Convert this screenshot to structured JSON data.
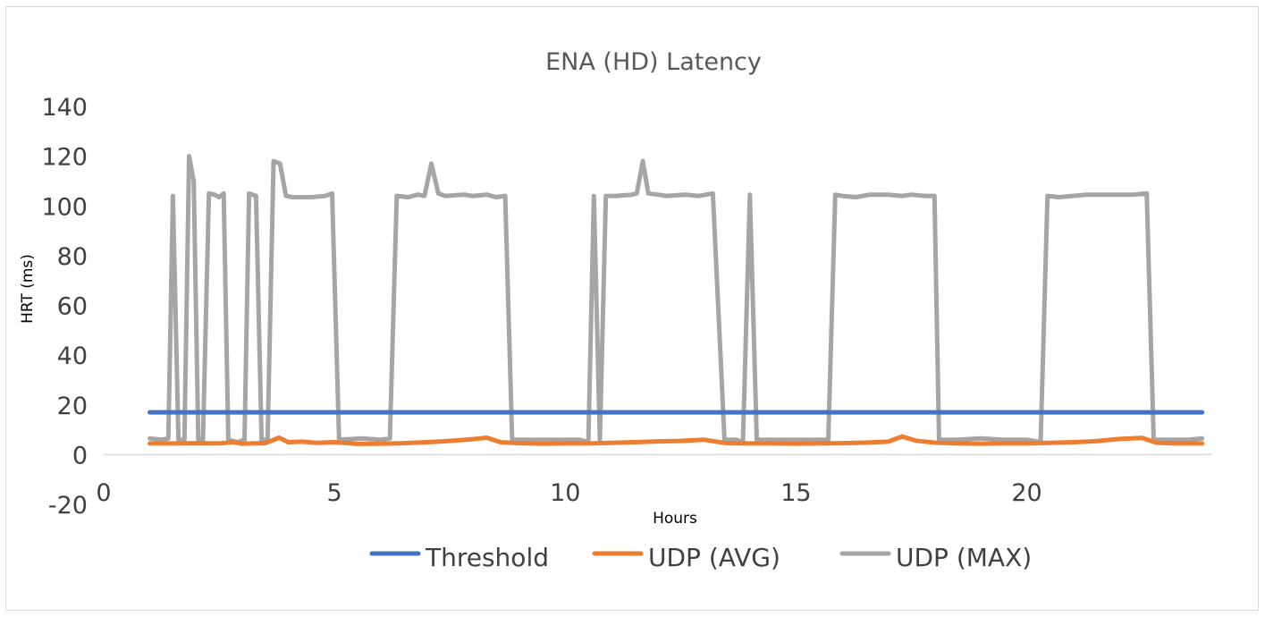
{
  "chart_data": {
    "type": "line",
    "title": "ENA (HD) Latency",
    "xlabel": "Hours",
    "ylabel": "HRT (ms)",
    "xlim": [
      0,
      24
    ],
    "ylim": [
      -20,
      140
    ],
    "x_ticks": [
      0,
      5,
      10,
      15,
      20
    ],
    "y_ticks": [
      -20,
      0,
      20,
      40,
      60,
      80,
      100,
      120,
      140
    ],
    "grid": false,
    "legend_position": "bottom",
    "series": [
      {
        "name": "Threshold",
        "color": "#4472C4",
        "points": [
          [
            1,
            17
          ],
          [
            23.8,
            17
          ]
        ]
      },
      {
        "name": "UDP (AVG)",
        "color": "#ED7D31",
        "points": [
          [
            1,
            4.5
          ],
          [
            1.5,
            4.5
          ],
          [
            2,
            4.6
          ],
          [
            2.5,
            4.5
          ],
          [
            2.8,
            5
          ],
          [
            3,
            4.4
          ],
          [
            3.5,
            4.6
          ],
          [
            3.8,
            6.8
          ],
          [
            4,
            5
          ],
          [
            4.3,
            5.2
          ],
          [
            4.6,
            4.7
          ],
          [
            5,
            5
          ],
          [
            5.5,
            4.3
          ],
          [
            6,
            4.4
          ],
          [
            6.5,
            4.6
          ],
          [
            7,
            5
          ],
          [
            7.5,
            5.5
          ],
          [
            8,
            6.2
          ],
          [
            8.3,
            6.8
          ],
          [
            8.6,
            5
          ],
          [
            9,
            4.6
          ],
          [
            9.5,
            4.4
          ],
          [
            10,
            4.5
          ],
          [
            10.5,
            4.5
          ],
          [
            11,
            4.7
          ],
          [
            11.5,
            5
          ],
          [
            12,
            5.3
          ],
          [
            12.5,
            5.5
          ],
          [
            13,
            6
          ],
          [
            13.5,
            4.6
          ],
          [
            14,
            4.5
          ],
          [
            14.5,
            4.5
          ],
          [
            15,
            4.4
          ],
          [
            15.5,
            4.5
          ],
          [
            16,
            4.6
          ],
          [
            16.5,
            4.8
          ],
          [
            17,
            5.2
          ],
          [
            17.3,
            7.3
          ],
          [
            17.6,
            5.6
          ],
          [
            18,
            4.8
          ],
          [
            18.5,
            4.5
          ],
          [
            19,
            4.4
          ],
          [
            19.5,
            4.5
          ],
          [
            20,
            4.5
          ],
          [
            20.5,
            4.7
          ],
          [
            21,
            5
          ],
          [
            21.5,
            5.4
          ],
          [
            22,
            6.3
          ],
          [
            22.5,
            6.7
          ],
          [
            22.8,
            4.8
          ],
          [
            23.2,
            4.5
          ],
          [
            23.8,
            4.5
          ]
        ]
      },
      {
        "name": "UDP (MAX)",
        "color": "#A5A5A5",
        "points": [
          [
            1,
            6.5
          ],
          [
            1.25,
            6
          ],
          [
            1.4,
            6.5
          ],
          [
            1.5,
            104
          ],
          [
            1.62,
            6
          ],
          [
            1.75,
            6
          ],
          [
            1.85,
            120
          ],
          [
            1.95,
            110
          ],
          [
            2.05,
            6
          ],
          [
            2.15,
            6
          ],
          [
            2.28,
            105
          ],
          [
            2.4,
            104.5
          ],
          [
            2.5,
            103.5
          ],
          [
            2.6,
            105
          ],
          [
            2.7,
            6
          ],
          [
            2.9,
            5
          ],
          [
            3.05,
            6
          ],
          [
            3.15,
            105
          ],
          [
            3.3,
            104
          ],
          [
            3.42,
            6
          ],
          [
            3.55,
            6
          ],
          [
            3.68,
            118
          ],
          [
            3.82,
            117
          ],
          [
            3.95,
            104
          ],
          [
            4.1,
            103.5
          ],
          [
            4.5,
            103.5
          ],
          [
            4.8,
            104
          ],
          [
            4.95,
            105
          ],
          [
            5.1,
            6
          ],
          [
            5.6,
            6.5
          ],
          [
            6,
            6
          ],
          [
            6.2,
            6.5
          ],
          [
            6.35,
            104
          ],
          [
            6.6,
            103.5
          ],
          [
            6.8,
            104.5
          ],
          [
            6.95,
            104
          ],
          [
            7.1,
            117
          ],
          [
            7.25,
            105
          ],
          [
            7.4,
            104
          ],
          [
            7.8,
            104.5
          ],
          [
            8,
            104
          ],
          [
            8.3,
            104.5
          ],
          [
            8.5,
            103.5
          ],
          [
            8.7,
            104
          ],
          [
            8.85,
            6
          ],
          [
            9.2,
            6
          ],
          [
            9.6,
            6
          ],
          [
            10,
            6
          ],
          [
            10.3,
            6
          ],
          [
            10.5,
            5
          ],
          [
            10.62,
            104
          ],
          [
            10.75,
            6
          ],
          [
            10.88,
            104
          ],
          [
            11.1,
            104
          ],
          [
            11.45,
            104.5
          ],
          [
            11.55,
            105
          ],
          [
            11.68,
            118
          ],
          [
            11.8,
            105
          ],
          [
            12,
            104.5
          ],
          [
            12.2,
            104
          ],
          [
            12.6,
            104.5
          ],
          [
            12.9,
            104
          ],
          [
            13.2,
            105
          ],
          [
            13.45,
            6
          ],
          [
            13.7,
            6
          ],
          [
            13.85,
            5
          ],
          [
            14,
            104.5
          ],
          [
            14.15,
            6
          ],
          [
            14.5,
            6
          ],
          [
            15,
            6
          ],
          [
            15.4,
            6
          ],
          [
            15.7,
            6
          ],
          [
            15.85,
            104.5
          ],
          [
            16,
            104
          ],
          [
            16.3,
            103.5
          ],
          [
            16.6,
            104.5
          ],
          [
            17,
            104.5
          ],
          [
            17.3,
            104
          ],
          [
            17.5,
            104.5
          ],
          [
            17.8,
            104
          ],
          [
            18,
            104
          ],
          [
            18.1,
            6
          ],
          [
            18.5,
            6
          ],
          [
            19,
            6.5
          ],
          [
            19.5,
            6
          ],
          [
            19.9,
            6
          ],
          [
            20,
            6
          ],
          [
            20.3,
            5
          ],
          [
            20.45,
            104
          ],
          [
            20.7,
            103.5
          ],
          [
            21,
            104
          ],
          [
            21.3,
            104.5
          ],
          [
            21.6,
            104.5
          ],
          [
            22,
            104.5
          ],
          [
            22.3,
            104.5
          ],
          [
            22.6,
            105
          ],
          [
            22.75,
            6
          ],
          [
            23.2,
            6
          ],
          [
            23.5,
            6
          ],
          [
            23.8,
            6.5
          ]
        ]
      }
    ]
  }
}
